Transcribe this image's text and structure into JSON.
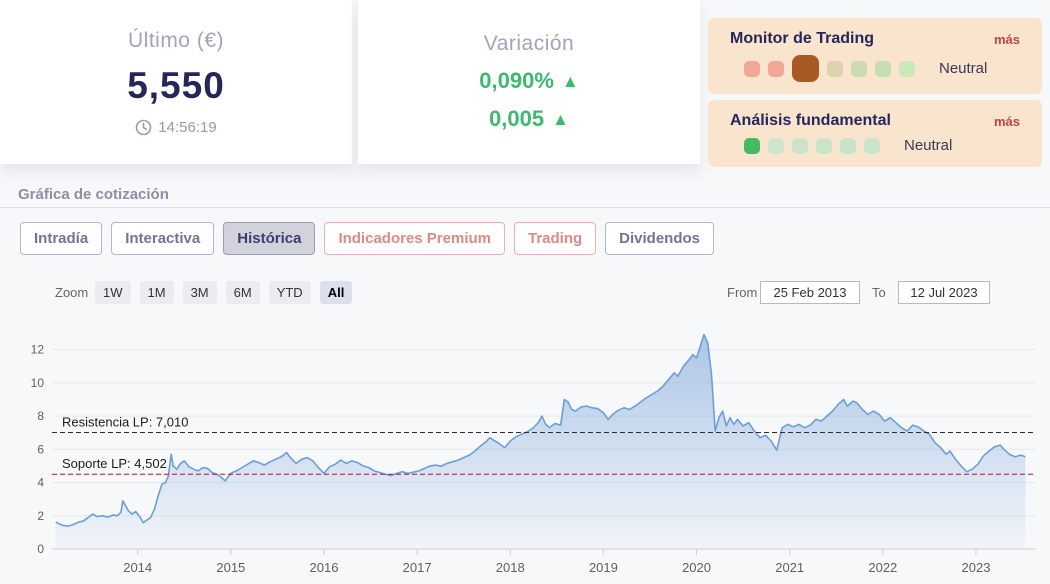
{
  "cards": {
    "last": {
      "title": "Último (€)",
      "value": "5,550",
      "time": "14:56:19"
    },
    "variation": {
      "title": "Variación",
      "percent": "0,090%",
      "absolute": "0,005",
      "up_icon": "▲",
      "color": "#3cba6e"
    }
  },
  "panels": [
    {
      "id": "trading",
      "title": "Monitor de Trading",
      "more_label": "más",
      "status": "Neutral",
      "dots": [
        {
          "color": "#f1a795"
        },
        {
          "color": "#f0a896"
        },
        {
          "color": "#a85a23",
          "large": true
        },
        {
          "color": "#dbd3af"
        },
        {
          "color": "#cdd9b3"
        },
        {
          "color": "#c5deb1"
        },
        {
          "color": "#c9e9b7"
        }
      ]
    },
    {
      "id": "fundamental",
      "title": "Análisis fundamental",
      "more_label": "más",
      "status": "Neutral",
      "dots": [
        {
          "color": "#44ba62"
        },
        {
          "color": "#cde6cb"
        },
        {
          "color": "#cbe4c9"
        },
        {
          "color": "#c9e4c7"
        },
        {
          "color": "#c7e3c9"
        },
        {
          "color": "#cbe5cb"
        }
      ]
    }
  ],
  "section": {
    "title": "Gráfica de cotización"
  },
  "tabs": [
    {
      "label": "Intradía",
      "style": "default"
    },
    {
      "label": "Interactiva",
      "style": "default"
    },
    {
      "label": "Histórica",
      "style": "active"
    },
    {
      "label": "Indicadores Premium",
      "style": "premium"
    },
    {
      "label": "Trading",
      "style": "premium"
    },
    {
      "label": "Dividendos",
      "style": "default"
    }
  ],
  "range_selector": {
    "zoom_label": "Zoom",
    "buttons": [
      "1W",
      "1M",
      "3M",
      "6M",
      "YTD",
      "All"
    ],
    "active": "All",
    "from_label": "From",
    "from_value": "25 Feb 2013",
    "to_label": "To",
    "to_value": "12 Jul 2023"
  },
  "chart_data": {
    "type": "area",
    "title": "",
    "xlabel": "",
    "ylabel": "",
    "xlim": [
      2013.08,
      2023.58
    ],
    "ylim": [
      0,
      13.3
    ],
    "x_ticks": [
      2014,
      2015,
      2016,
      2017,
      2018,
      2019,
      2020,
      2021,
      2022,
      2023
    ],
    "y_ticks": [
      0,
      2,
      4,
      6,
      8,
      10,
      12
    ],
    "grid": true,
    "legend": false,
    "annotations": [
      {
        "name": "resistencia",
        "label": "Resistencia LP: 7,010",
        "value": 7.01,
        "color": "#2b2b2b"
      },
      {
        "name": "soporte",
        "label": "Soporte LP: 4,502",
        "value": 4.502,
        "color": "#8e2438"
      }
    ],
    "colors": {
      "line": "#6d9ed8",
      "fill": "#7ea7db",
      "grid": "#e7e7e7",
      "axis": "#cfcfcf",
      "axis_label": "#606060"
    },
    "series": [
      {
        "name": "Cotización",
        "points": [
          [
            2013.12,
            1.62
          ],
          [
            2013.16,
            1.5
          ],
          [
            2013.2,
            1.42
          ],
          [
            2013.25,
            1.38
          ],
          [
            2013.3,
            1.45
          ],
          [
            2013.36,
            1.6
          ],
          [
            2013.42,
            1.7
          ],
          [
            2013.48,
            1.95
          ],
          [
            2013.52,
            2.1
          ],
          [
            2013.56,
            1.95
          ],
          [
            2013.62,
            2.0
          ],
          [
            2013.68,
            1.92
          ],
          [
            2013.74,
            2.05
          ],
          [
            2013.78,
            2.0
          ],
          [
            2013.82,
            2.2
          ],
          [
            2013.84,
            2.9
          ],
          [
            2013.87,
            2.6
          ],
          [
            2013.9,
            2.3
          ],
          [
            2013.94,
            2.1
          ],
          [
            2013.98,
            2.25
          ],
          [
            2014.02,
            1.95
          ],
          [
            2014.06,
            1.58
          ],
          [
            2014.1,
            1.75
          ],
          [
            2014.14,
            1.9
          ],
          [
            2014.18,
            2.4
          ],
          [
            2014.22,
            3.2
          ],
          [
            2014.26,
            3.9
          ],
          [
            2014.3,
            4.0
          ],
          [
            2014.33,
            4.4
          ],
          [
            2014.36,
            5.7
          ],
          [
            2014.38,
            5.0
          ],
          [
            2014.42,
            4.8
          ],
          [
            2014.46,
            5.15
          ],
          [
            2014.5,
            5.3
          ],
          [
            2014.55,
            4.95
          ],
          [
            2014.6,
            4.8
          ],
          [
            2014.65,
            4.7
          ],
          [
            2014.7,
            4.9
          ],
          [
            2014.75,
            4.85
          ],
          [
            2014.8,
            4.6
          ],
          [
            2014.85,
            4.5
          ],
          [
            2014.9,
            4.3
          ],
          [
            2014.94,
            4.1
          ],
          [
            2015.0,
            4.55
          ],
          [
            2015.06,
            4.7
          ],
          [
            2015.12,
            4.9
          ],
          [
            2015.18,
            5.1
          ],
          [
            2015.24,
            5.3
          ],
          [
            2015.3,
            5.2
          ],
          [
            2015.36,
            5.05
          ],
          [
            2015.42,
            5.25
          ],
          [
            2015.48,
            5.4
          ],
          [
            2015.54,
            5.55
          ],
          [
            2015.6,
            5.8
          ],
          [
            2015.64,
            5.5
          ],
          [
            2015.7,
            5.15
          ],
          [
            2015.76,
            5.4
          ],
          [
            2015.82,
            5.5
          ],
          [
            2015.88,
            5.3
          ],
          [
            2015.94,
            4.9
          ],
          [
            2016.0,
            4.55
          ],
          [
            2016.06,
            4.95
          ],
          [
            2016.12,
            5.1
          ],
          [
            2016.18,
            5.35
          ],
          [
            2016.24,
            5.15
          ],
          [
            2016.3,
            5.3
          ],
          [
            2016.36,
            5.2
          ],
          [
            2016.42,
            5.0
          ],
          [
            2016.48,
            4.9
          ],
          [
            2016.54,
            4.7
          ],
          [
            2016.6,
            4.6
          ],
          [
            2016.66,
            4.5
          ],
          [
            2016.72,
            4.42
          ],
          [
            2016.78,
            4.55
          ],
          [
            2016.84,
            4.65
          ],
          [
            2016.9,
            4.55
          ],
          [
            2016.96,
            4.62
          ],
          [
            2017.02,
            4.7
          ],
          [
            2017.08,
            4.85
          ],
          [
            2017.14,
            5.0
          ],
          [
            2017.2,
            5.05
          ],
          [
            2017.26,
            4.98
          ],
          [
            2017.32,
            5.15
          ],
          [
            2017.38,
            5.25
          ],
          [
            2017.44,
            5.35
          ],
          [
            2017.5,
            5.5
          ],
          [
            2017.56,
            5.65
          ],
          [
            2017.62,
            5.9
          ],
          [
            2017.68,
            6.2
          ],
          [
            2017.74,
            6.45
          ],
          [
            2017.78,
            6.7
          ],
          [
            2017.82,
            6.55
          ],
          [
            2017.88,
            6.35
          ],
          [
            2017.94,
            6.1
          ],
          [
            2018.0,
            6.5
          ],
          [
            2018.06,
            6.75
          ],
          [
            2018.12,
            6.9
          ],
          [
            2018.18,
            7.05
          ],
          [
            2018.24,
            7.25
          ],
          [
            2018.3,
            7.6
          ],
          [
            2018.34,
            8.0
          ],
          [
            2018.38,
            7.5
          ],
          [
            2018.42,
            7.3
          ],
          [
            2018.48,
            7.55
          ],
          [
            2018.54,
            7.45
          ],
          [
            2018.58,
            9.0
          ],
          [
            2018.62,
            8.85
          ],
          [
            2018.66,
            8.4
          ],
          [
            2018.7,
            8.3
          ],
          [
            2018.76,
            8.55
          ],
          [
            2018.82,
            8.6
          ],
          [
            2018.88,
            8.5
          ],
          [
            2018.94,
            8.45
          ],
          [
            2019.0,
            8.2
          ],
          [
            2019.05,
            7.8
          ],
          [
            2019.1,
            8.1
          ],
          [
            2019.16,
            8.35
          ],
          [
            2019.22,
            8.5
          ],
          [
            2019.28,
            8.4
          ],
          [
            2019.34,
            8.6
          ],
          [
            2019.4,
            8.85
          ],
          [
            2019.46,
            9.1
          ],
          [
            2019.52,
            9.3
          ],
          [
            2019.58,
            9.5
          ],
          [
            2019.64,
            9.8
          ],
          [
            2019.7,
            10.2
          ],
          [
            2019.76,
            10.6
          ],
          [
            2019.8,
            10.4
          ],
          [
            2019.86,
            11.0
          ],
          [
            2019.92,
            11.4
          ],
          [
            2019.96,
            11.7
          ],
          [
            2020.0,
            11.5
          ],
          [
            2020.04,
            12.2
          ],
          [
            2020.08,
            12.9
          ],
          [
            2020.12,
            12.4
          ],
          [
            2020.16,
            10.5
          ],
          [
            2020.2,
            7.1
          ],
          [
            2020.24,
            7.9
          ],
          [
            2020.28,
            8.3
          ],
          [
            2020.32,
            7.4
          ],
          [
            2020.36,
            7.9
          ],
          [
            2020.4,
            7.5
          ],
          [
            2020.44,
            7.8
          ],
          [
            2020.5,
            7.4
          ],
          [
            2020.56,
            7.6
          ],
          [
            2020.62,
            7.1
          ],
          [
            2020.68,
            6.7
          ],
          [
            2020.74,
            6.85
          ],
          [
            2020.8,
            6.5
          ],
          [
            2020.86,
            5.95
          ],
          [
            2020.92,
            7.3
          ],
          [
            2020.98,
            7.5
          ],
          [
            2021.04,
            7.35
          ],
          [
            2021.1,
            7.5
          ],
          [
            2021.16,
            7.3
          ],
          [
            2021.22,
            7.45
          ],
          [
            2021.28,
            7.8
          ],
          [
            2021.34,
            7.7
          ],
          [
            2021.4,
            8.0
          ],
          [
            2021.46,
            8.3
          ],
          [
            2021.52,
            8.7
          ],
          [
            2021.58,
            9.0
          ],
          [
            2021.62,
            8.6
          ],
          [
            2021.68,
            8.9
          ],
          [
            2021.72,
            8.8
          ],
          [
            2021.78,
            8.4
          ],
          [
            2021.84,
            8.1
          ],
          [
            2021.9,
            8.3
          ],
          [
            2021.96,
            8.1
          ],
          [
            2022.02,
            7.7
          ],
          [
            2022.08,
            7.9
          ],
          [
            2022.14,
            7.6
          ],
          [
            2022.2,
            7.3
          ],
          [
            2022.26,
            7.1
          ],
          [
            2022.32,
            7.45
          ],
          [
            2022.38,
            7.35
          ],
          [
            2022.44,
            7.1
          ],
          [
            2022.5,
            6.9
          ],
          [
            2022.56,
            6.4
          ],
          [
            2022.62,
            6.1
          ],
          [
            2022.68,
            5.7
          ],
          [
            2022.72,
            5.9
          ],
          [
            2022.78,
            5.4
          ],
          [
            2022.84,
            5.0
          ],
          [
            2022.9,
            4.65
          ],
          [
            2022.96,
            4.8
          ],
          [
            2023.02,
            5.1
          ],
          [
            2023.08,
            5.6
          ],
          [
            2023.14,
            5.9
          ],
          [
            2023.2,
            6.15
          ],
          [
            2023.26,
            6.25
          ],
          [
            2023.3,
            6.0
          ],
          [
            2023.36,
            5.7
          ],
          [
            2023.42,
            5.55
          ],
          [
            2023.48,
            5.65
          ],
          [
            2023.53,
            5.55
          ]
        ]
      }
    ]
  }
}
